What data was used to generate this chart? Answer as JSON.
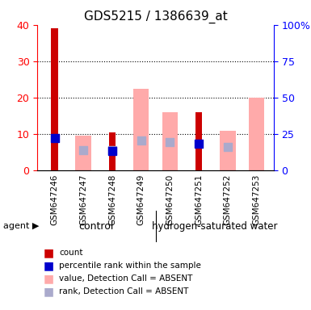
{
  "title": "GDS5215 / 1386639_at",
  "samples": [
    "GSM647246",
    "GSM647247",
    "GSM647248",
    "GSM647249",
    "GSM647250",
    "GSM647251",
    "GSM647252",
    "GSM647253"
  ],
  "groups": [
    "control",
    "control",
    "control",
    "control",
    "hydrogen-saturated water",
    "hydrogen-saturated water",
    "hydrogen-saturated water",
    "hydrogen-saturated water"
  ],
  "group_colors": {
    "control": "#90ee90",
    "hydrogen-saturated water": "#90ee90"
  },
  "count_values": [
    39,
    null,
    10.5,
    null,
    null,
    16,
    null,
    null
  ],
  "rank_values": [
    22,
    null,
    13.5,
    null,
    null,
    18.5,
    null,
    null
  ],
  "absent_value": [
    null,
    9.5,
    null,
    22.5,
    16,
    null,
    11,
    20
  ],
  "absent_rank": [
    null,
    14,
    14,
    20.5,
    19.5,
    null,
    16,
    null
  ],
  "ylim_left": [
    0,
    40
  ],
  "ylim_right": [
    0,
    100
  ],
  "left_ticks": [
    0,
    10,
    20,
    30,
    40
  ],
  "right_ticks": [
    0,
    25,
    50,
    75,
    100
  ],
  "right_tick_labels": [
    "0",
    "25",
    "50",
    "75",
    "100%"
  ],
  "color_count": "#cc0000",
  "color_rank": "#0000cc",
  "color_absent_value": "#ffaaaa",
  "color_absent_rank": "#aaaacc",
  "bar_width": 0.35,
  "dot_size": 60
}
